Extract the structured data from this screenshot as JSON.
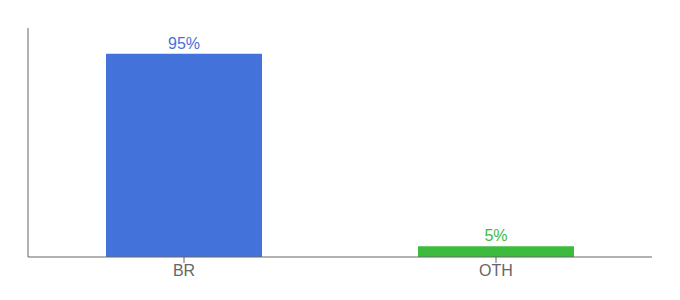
{
  "chart_data": {
    "type": "bar",
    "categories": [
      "BR",
      "OTH"
    ],
    "values": [
      95,
      5
    ],
    "value_labels": [
      "95%",
      "5%"
    ],
    "data_labels": true,
    "colors": [
      "#4472db",
      "#3dbb3d"
    ],
    "ylim": [
      0,
      107
    ],
    "tick_labels": "x",
    "grid": false
  }
}
